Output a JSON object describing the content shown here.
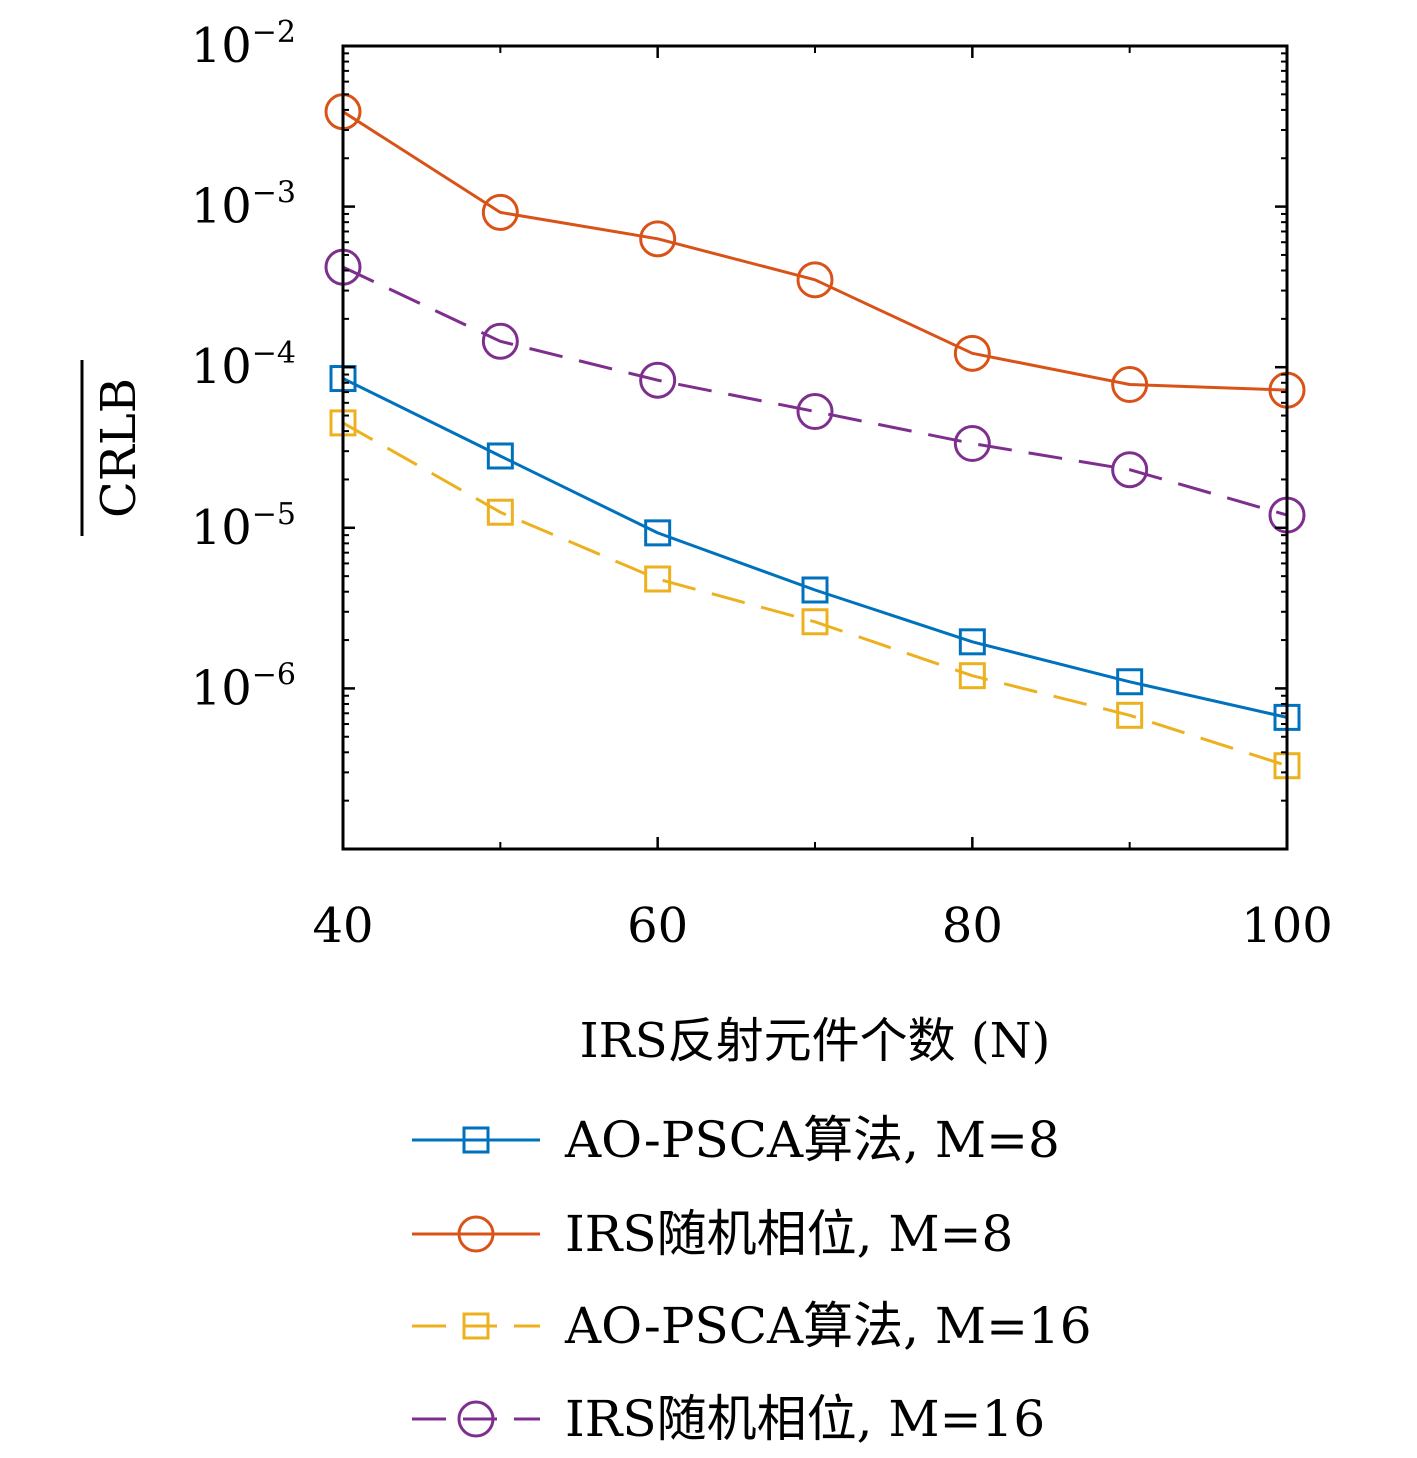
{
  "chart_data": {
    "type": "line",
    "yscale": "log",
    "x": [
      40,
      50,
      60,
      70,
      80,
      90,
      100
    ],
    "xlim": [
      40,
      100
    ],
    "ylim": [
      1e-07,
      0.01
    ],
    "xticks": [
      40,
      60,
      80,
      100
    ],
    "xtick_labels": [
      "40",
      "60",
      "80",
      "100"
    ],
    "yticks": [
      1e-06,
      1e-05,
      0.0001,
      0.001,
      0.01
    ],
    "ytick_labels": [
      {
        "base": "10",
        "exp": "−6"
      },
      {
        "base": "10",
        "exp": "−5"
      },
      {
        "base": "10",
        "exp": "−4"
      },
      {
        "base": "10",
        "exp": "−3"
      },
      {
        "base": "10",
        "exp": "−2"
      }
    ],
    "xlabel": "IRS反射元件个数 (N)",
    "ylabel": "CRLB",
    "grid": false,
    "legend_position": "bottom",
    "series": [
      {
        "name": "AO-PSCA算法, M=8",
        "color": "#0072BD",
        "marker": "square",
        "dash": "solid",
        "values": [
          8.5e-05,
          2.8e-05,
          9.3e-06,
          4.1e-06,
          1.95e-06,
          1.1e-06,
          6.6e-07
        ]
      },
      {
        "name": "IRS随机相位, M=8",
        "color": "#D95319",
        "marker": "circle",
        "dash": "solid",
        "values": [
          0.0039,
          0.00092,
          0.00063,
          0.00035,
          0.000122,
          7.8e-05,
          7.2e-05
        ]
      },
      {
        "name": "AO-PSCA算法, M=16",
        "color": "#EDB120",
        "marker": "square",
        "dash": "dashed",
        "values": [
          4.5e-05,
          1.25e-05,
          4.8e-06,
          2.6e-06,
          1.2e-06,
          6.8e-07,
          3.3e-07
        ]
      },
      {
        "name": "IRS随机相位, M=16",
        "color": "#7E2F8E",
        "marker": "circle",
        "dash": "dashed",
        "values": [
          0.00042,
          0.000145,
          8.3e-05,
          5.3e-05,
          3.35e-05,
          2.3e-05,
          1.2e-05
        ]
      }
    ]
  }
}
